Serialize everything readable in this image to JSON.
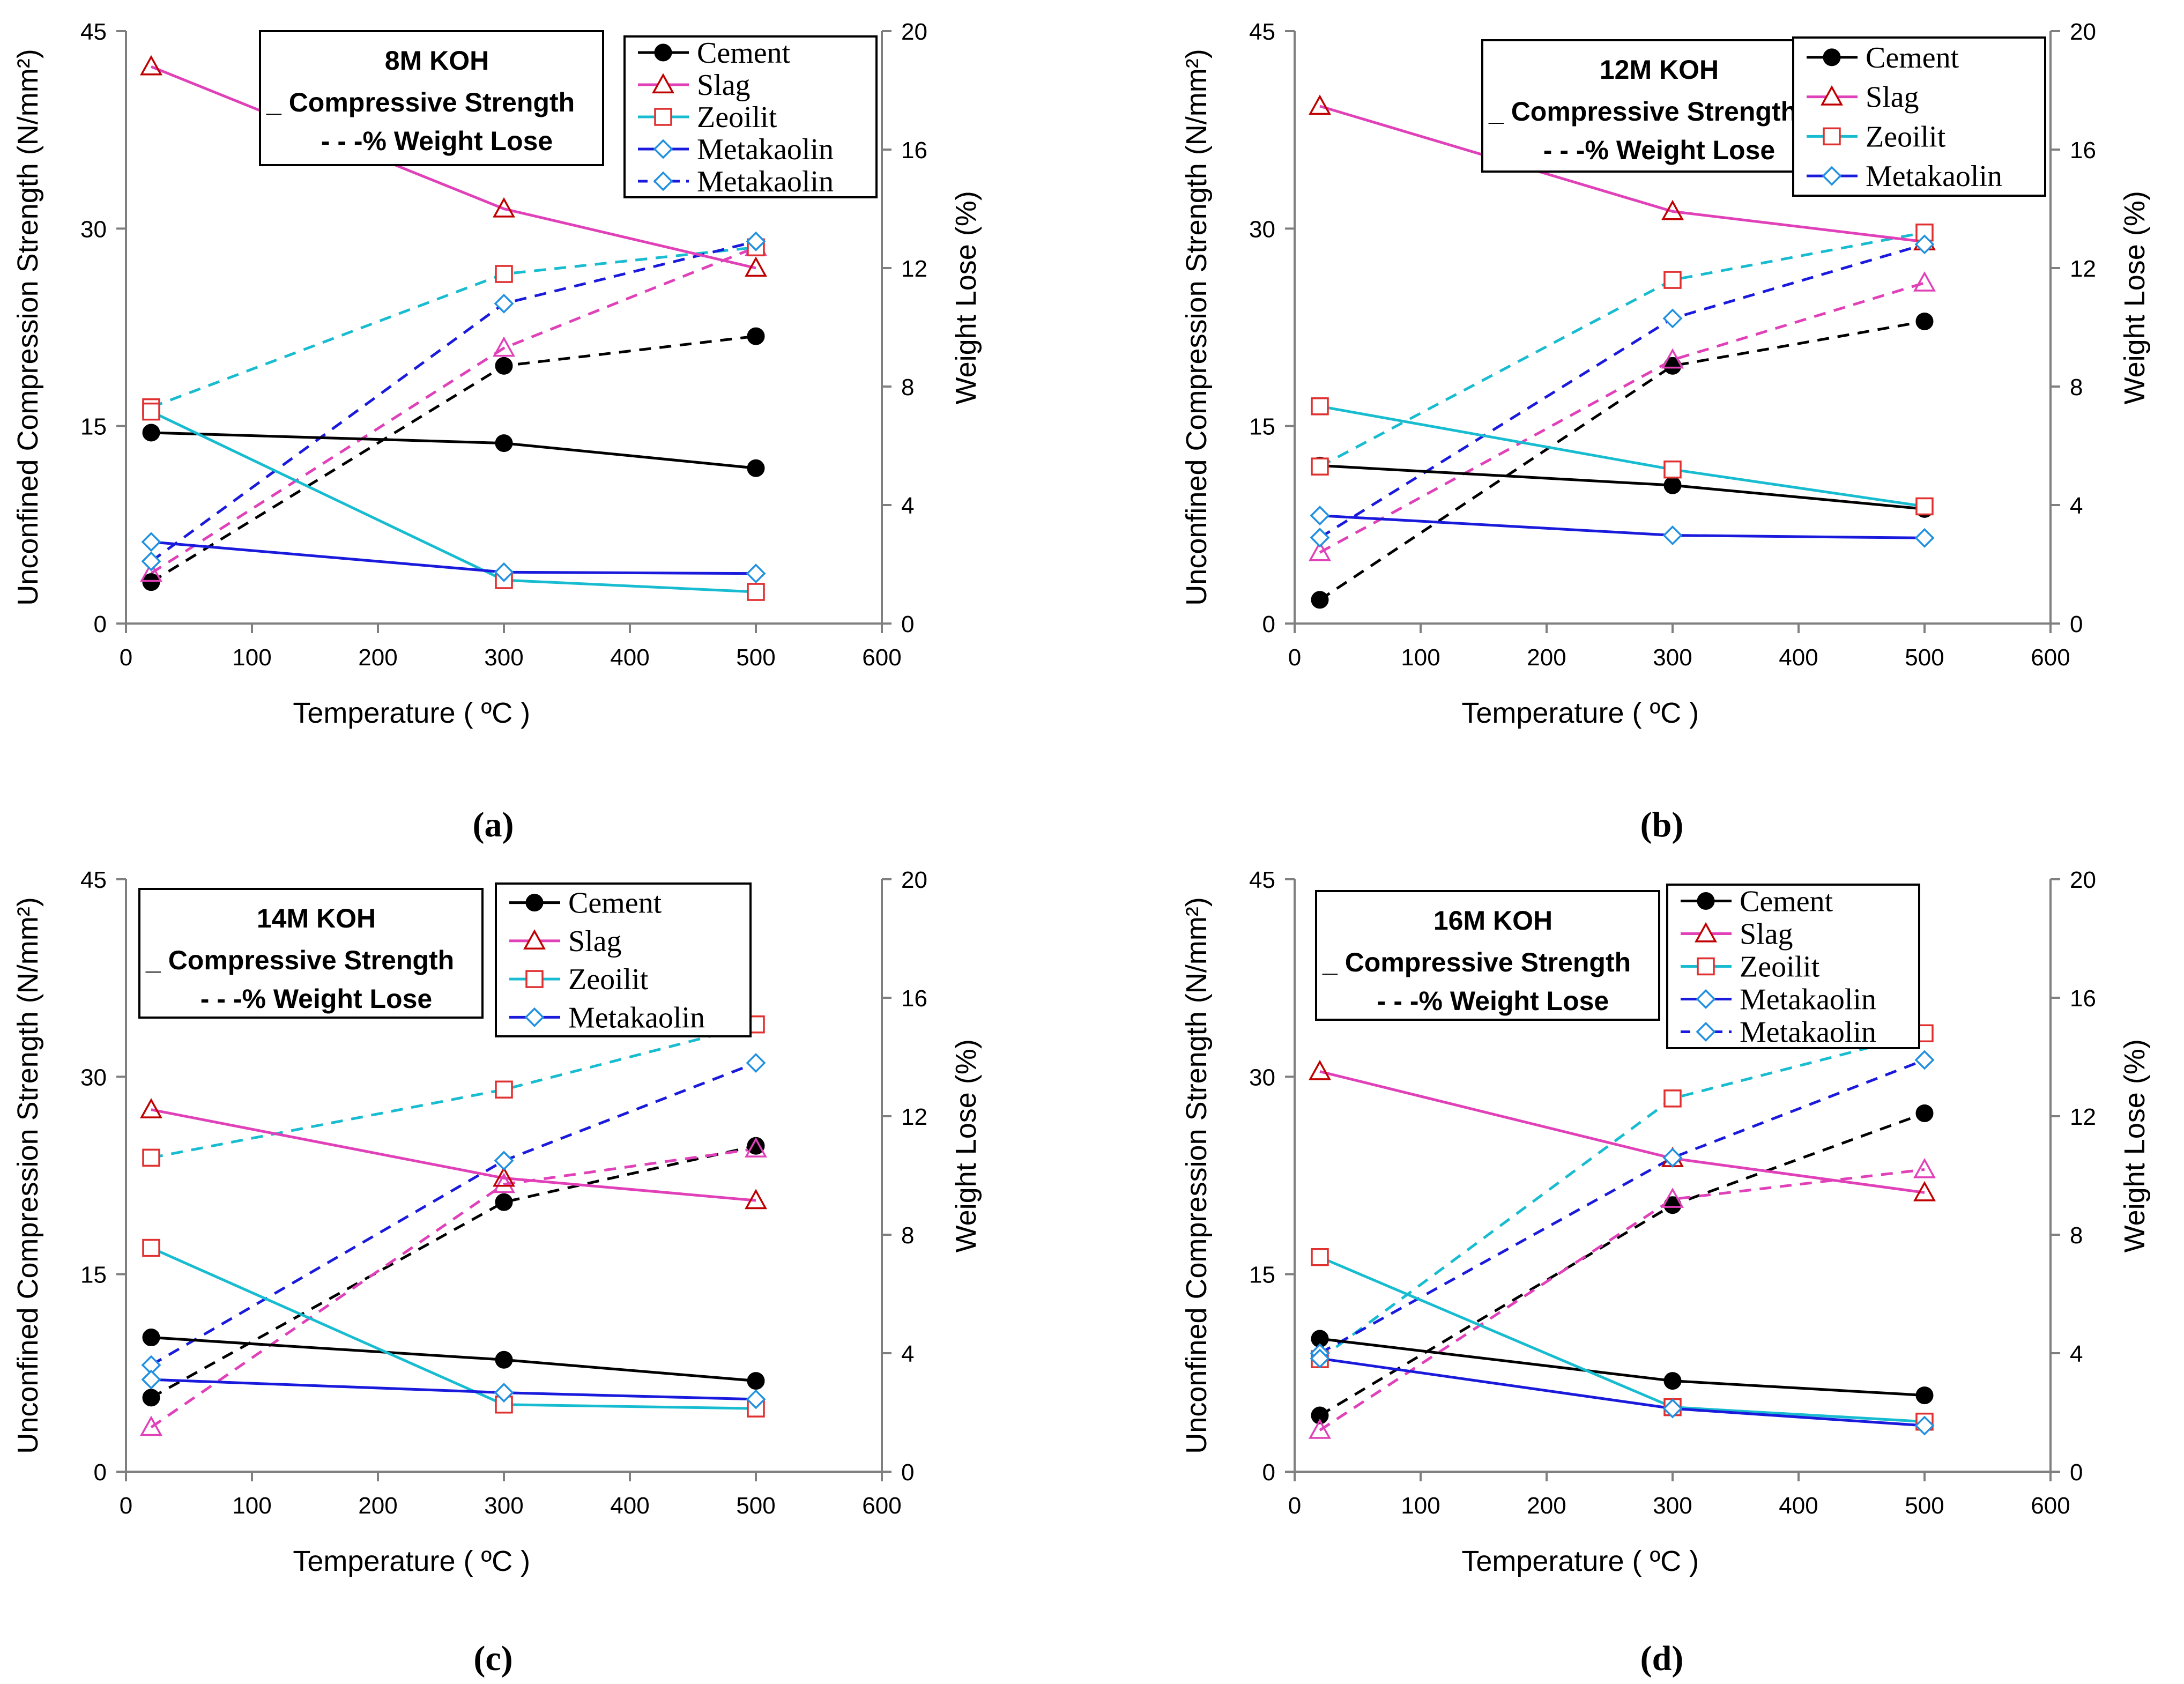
{
  "colors": {
    "cement": "#000000",
    "slag": "#e040b8",
    "slag_marker": "#c00000",
    "zeolite": "#18bcd0",
    "zeolite_marker": "#e03030",
    "metakaolin": "#1a1adc",
    "metakaolin_marker": "#2090e0"
  },
  "chart_data": [
    {
      "type": "line",
      "caption": "(a)",
      "title_lines": [
        "8M KOH",
        "_ Compressive Strength",
        "- - -% Weight Lose"
      ],
      "xlabel": "Temperature ( ºC )",
      "ylabel": "Unconfined Compression Strength (N/mm²)",
      "y2label": "Weight Lose (%)",
      "xlim": [
        0,
        600
      ],
      "xticks": [
        0,
        100,
        200,
        300,
        400,
        500,
        600
      ],
      "ylim": [
        0,
        45
      ],
      "yticks": [
        0,
        15,
        30,
        45
      ],
      "y2lim": [
        0,
        20
      ],
      "y2ticks": [
        0,
        4,
        8,
        12,
        16,
        20
      ],
      "x": [
        20,
        300,
        500
      ],
      "legend": [
        "Cement",
        "Slag",
        "Zeoilit",
        "Metakaolin",
        "Metakaolin"
      ],
      "strength": {
        "Cement": [
          14.5,
          13.7,
          11.8
        ],
        "Slag": [
          42.3,
          31.5,
          27.0
        ],
        "Zeoilit": [
          16.1,
          3.3,
          2.4
        ],
        "Metakaolin": [
          6.2,
          3.9,
          3.8
        ]
      },
      "weight_loss": {
        "Cement": [
          1.4,
          8.7,
          9.7
        ],
        "Slag": [
          1.7,
          9.3,
          12.7
        ],
        "Zeoilit": [
          7.3,
          11.8,
          12.7
        ],
        "Metakaolin": [
          2.1,
          10.8,
          12.9
        ]
      }
    },
    {
      "type": "line",
      "caption": "(b)",
      "title_lines": [
        "12M KOH",
        "_ Compressive Strength",
        "- - -% Weight Lose"
      ],
      "xlabel": "Temperature ( ºC )",
      "ylabel": "Unconfined Compression Strength (N/mm²)",
      "y2label": "Weight Lose (%)",
      "xlim": [
        0,
        600
      ],
      "xticks": [
        0,
        100,
        200,
        300,
        400,
        500,
        600
      ],
      "ylim": [
        0,
        45
      ],
      "yticks": [
        0,
        15,
        30,
        45
      ],
      "y2lim": [
        0,
        20
      ],
      "y2ticks": [
        0,
        4,
        8,
        12,
        16,
        20
      ],
      "x": [
        20,
        300,
        500
      ],
      "legend": [
        "Cement",
        "Slag",
        "Zeoilit",
        "Metakaolin"
      ],
      "strength": {
        "Cement": [
          12.0,
          10.5,
          8.7
        ],
        "Slag": [
          39.3,
          31.3,
          29.0
        ],
        "Zeoilit": [
          16.5,
          11.7,
          8.9
        ],
        "Metakaolin": [
          8.2,
          6.7,
          6.5
        ]
      },
      "weight_loss": {
        "Cement": [
          0.8,
          8.7,
          10.2
        ],
        "Slag": [
          2.4,
          8.9,
          11.5
        ],
        "Zeoilit": [
          5.3,
          11.6,
          13.2
        ],
        "Metakaolin": [
          2.9,
          10.3,
          12.8
        ]
      }
    },
    {
      "type": "line",
      "caption": "(c)",
      "title_lines": [
        "14M KOH",
        "_ Compressive Strength",
        "- - -% Weight Lose"
      ],
      "xlabel": "Temperature ( ºC )",
      "ylabel": "Unconfined Compression Strength (N/mm²)",
      "y2label": "Weight Lose (%)",
      "xlim": [
        0,
        600
      ],
      "xticks": [
        0,
        100,
        200,
        300,
        400,
        500,
        600
      ],
      "ylim": [
        0,
        45
      ],
      "yticks": [
        0,
        15,
        30,
        45
      ],
      "y2lim": [
        0,
        20
      ],
      "y2ticks": [
        0,
        4,
        8,
        12,
        16,
        20
      ],
      "x": [
        20,
        300,
        500
      ],
      "legend": [
        "Cement",
        "Slag",
        "Zeoilit",
        "Metakaolin"
      ],
      "strength": {
        "Cement": [
          10.2,
          8.5,
          6.9
        ],
        "Slag": [
          27.5,
          22.3,
          20.6
        ],
        "Zeoilit": [
          17.0,
          5.1,
          4.8
        ],
        "Metakaolin": [
          7.0,
          6.0,
          5.5
        ]
      },
      "weight_loss": {
        "Cement": [
          2.5,
          9.1,
          11.0
        ],
        "Slag": [
          1.5,
          9.7,
          10.9
        ],
        "Zeoilit": [
          10.6,
          12.9,
          15.1
        ],
        "Metakaolin": [
          3.6,
          10.5,
          13.8
        ]
      }
    },
    {
      "type": "line",
      "caption": "(d)",
      "title_lines": [
        "16M KOH",
        "_ Compressive Strength",
        "- - -% Weight Lose"
      ],
      "xlabel": "Temperature ( ºC )",
      "ylabel": "Unconfined Compression Strength (N/mm²)",
      "y2label": "Weight Lose (%)",
      "xlim": [
        0,
        600
      ],
      "xticks": [
        0,
        100,
        200,
        300,
        400,
        500,
        600
      ],
      "ylim": [
        0,
        45
      ],
      "yticks": [
        0,
        15,
        30,
        45
      ],
      "y2lim": [
        0,
        20
      ],
      "y2ticks": [
        0,
        4,
        8,
        12,
        16,
        20
      ],
      "x": [
        20,
        300,
        500
      ],
      "legend": [
        "Cement",
        "Slag",
        "Zeoilit",
        "Metakaolin",
        "Metakaolin"
      ],
      "strength": {
        "Cement": [
          10.1,
          6.9,
          5.8
        ],
        "Slag": [
          30.4,
          23.8,
          21.2
        ],
        "Zeoilit": [
          16.3,
          4.9,
          3.8
        ],
        "Metakaolin": [
          8.6,
          4.8,
          3.5
        ]
      },
      "weight_loss": {
        "Cement": [
          1.9,
          9.0,
          12.1
        ],
        "Slag": [
          1.4,
          9.2,
          10.2
        ],
        "Zeoilit": [
          3.8,
          12.6,
          14.8
        ],
        "Metakaolin": [
          4.0,
          10.6,
          13.9
        ]
      }
    }
  ]
}
